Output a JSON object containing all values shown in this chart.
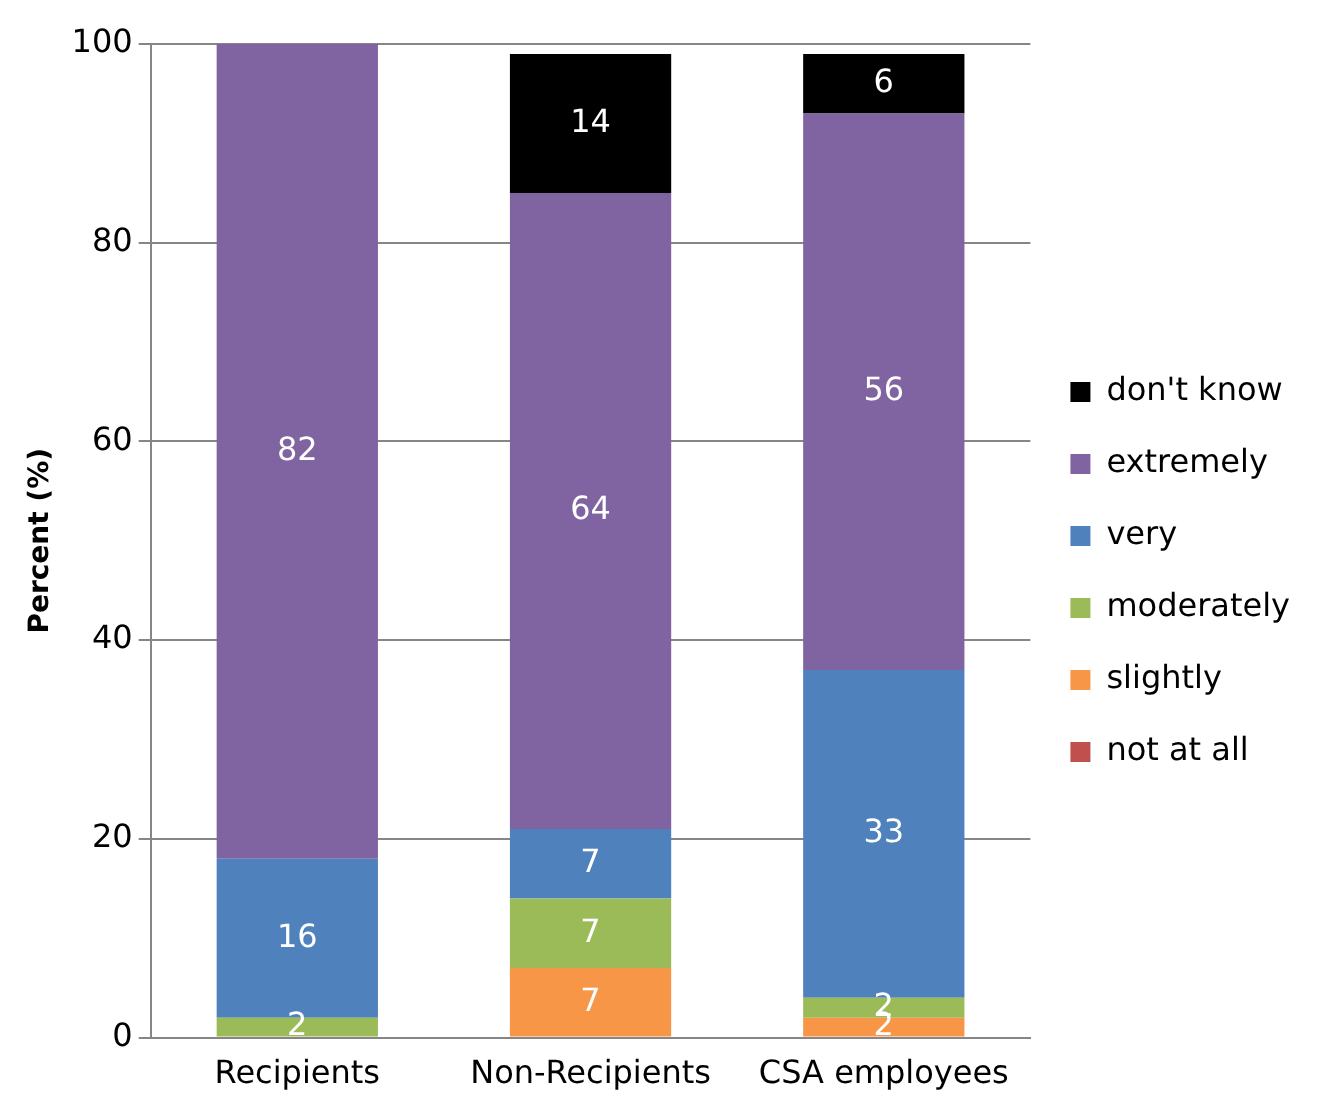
{
  "chart_data": {
    "type": "bar",
    "ylabel": "Percent (%)",
    "categories": [
      "Recipients",
      "Non-Recipients",
      "CSA employees"
    ],
    "stacked": true,
    "series": [
      {
        "name": "not at all",
        "color": "#c0504d",
        "values": [
          0,
          0,
          0
        ],
        "value_labels": [
          null,
          null,
          null
        ]
      },
      {
        "name": "slightly",
        "color": "#f79646",
        "values": [
          0,
          7,
          2
        ],
        "value_labels": [
          null,
          "7",
          "2"
        ]
      },
      {
        "name": "moderately",
        "color": "#9bbb59",
        "values": [
          2,
          7,
          2
        ],
        "value_labels": [
          "2",
          "7",
          "2"
        ]
      },
      {
        "name": "very",
        "color": "#4f81bd",
        "values": [
          16,
          7,
          33
        ],
        "value_labels": [
          "16",
          "7",
          "33"
        ]
      },
      {
        "name": "extremely",
        "color": "#8064a2",
        "values": [
          82,
          64,
          56
        ],
        "value_labels": [
          "82",
          "64",
          "56"
        ]
      },
      {
        "name": "don't know",
        "color": "#000000",
        "values": [
          0,
          14,
          6
        ],
        "value_labels": [
          null,
          "14",
          "6"
        ]
      }
    ],
    "ylim": [
      0,
      100
    ],
    "yticks": [
      0,
      20,
      40,
      60,
      80,
      100
    ],
    "grid": "y",
    "legend": "right"
  }
}
